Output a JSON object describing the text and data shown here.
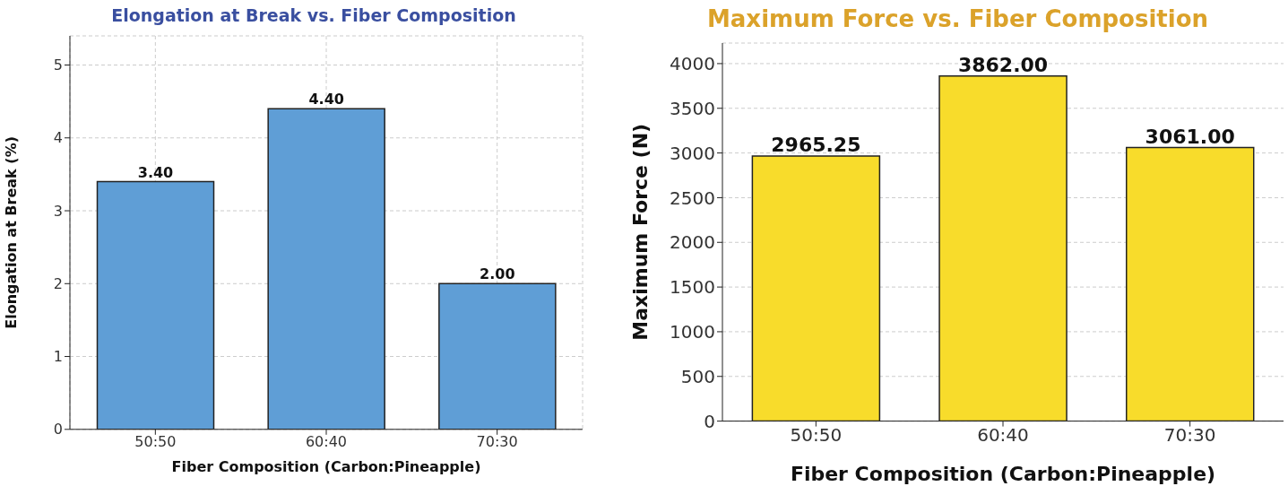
{
  "chart_data": [
    {
      "type": "bar",
      "title": "Elongation at Break vs. Fiber Composition",
      "xlabel": "Fiber Composition (Carbon:Pineapple)",
      "ylabel": "Elongation at Break (%)",
      "categories": [
        "50:50",
        "60:40",
        "70:30"
      ],
      "values": [
        3.4,
        4.4,
        2.0
      ],
      "value_labels": [
        "3.40",
        "4.40",
        "2.00"
      ],
      "color": "#5f9ed6",
      "ylim": [
        0,
        5.4
      ],
      "yticks": [
        0,
        1,
        2,
        3,
        4,
        5
      ],
      "grid": true
    },
    {
      "type": "bar",
      "title": "Maximum Force vs. Fiber Composition",
      "xlabel": "Fiber Composition (Carbon:Pineapple)",
      "ylabel": "Maximum Force (N)",
      "categories": [
        "50:50",
        "60:40",
        "70:30"
      ],
      "values": [
        2965.25,
        3862.0,
        3061.0
      ],
      "value_labels": [
        "2965.25",
        "3862.00",
        "3061.00"
      ],
      "color": "#f8dc2b",
      "ylim": [
        0,
        4230
      ],
      "yticks": [
        0,
        500,
        1000,
        1500,
        2000,
        2500,
        3000,
        3500,
        4000
      ],
      "grid": "y"
    }
  ]
}
